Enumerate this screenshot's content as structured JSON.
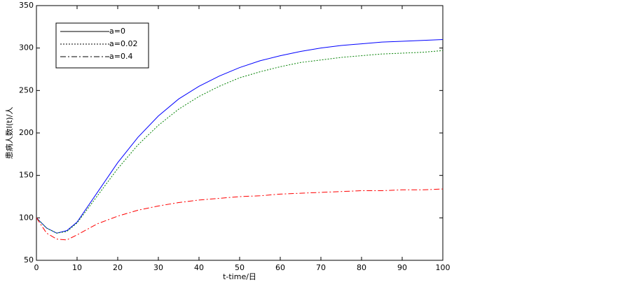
{
  "chart_data": {
    "type": "line",
    "x_label": "t-time/日",
    "y_label": "患病人数I(t)/人",
    "x": [
      0,
      2.5,
      5,
      7.5,
      10,
      15,
      20,
      25,
      30,
      35,
      40,
      45,
      50,
      55,
      60,
      65,
      70,
      75,
      80,
      85,
      90,
      95,
      100
    ],
    "series": [
      {
        "name": "a=0",
        "color": "#0000ff",
        "dash": "none",
        "values": [
          100,
          88,
          82,
          85,
          95,
          130,
          165,
          195,
          220,
          240,
          255,
          267,
          277,
          285,
          291,
          296,
          300,
          303,
          305,
          307,
          308,
          309,
          310
        ]
      },
      {
        "name": "a=0.02",
        "color": "#008000",
        "dash": "2,2",
        "values": [
          100,
          88,
          82,
          84,
          94,
          126,
          158,
          186,
          209,
          228,
          243,
          255,
          265,
          272,
          278,
          283,
          286,
          289,
          291,
          293,
          294,
          295,
          297
        ]
      },
      {
        "name": "a=0.4",
        "color": "#ff0000",
        "dash": "8,3,2,3",
        "values": [
          100,
          82,
          75,
          74,
          80,
          93,
          102,
          109,
          114,
          118,
          121,
          123,
          125,
          126,
          128,
          129,
          130,
          131,
          132,
          132,
          133,
          133,
          134
        ]
      }
    ],
    "xlim": [
      0,
      100
    ],
    "xticks": [
      0,
      10,
      20,
      30,
      40,
      50,
      60,
      70,
      80,
      90,
      100
    ],
    "ylim": [
      50,
      350
    ],
    "yticks": [
      50,
      100,
      150,
      200,
      250,
      300,
      350
    ],
    "legend": "upper left"
  }
}
